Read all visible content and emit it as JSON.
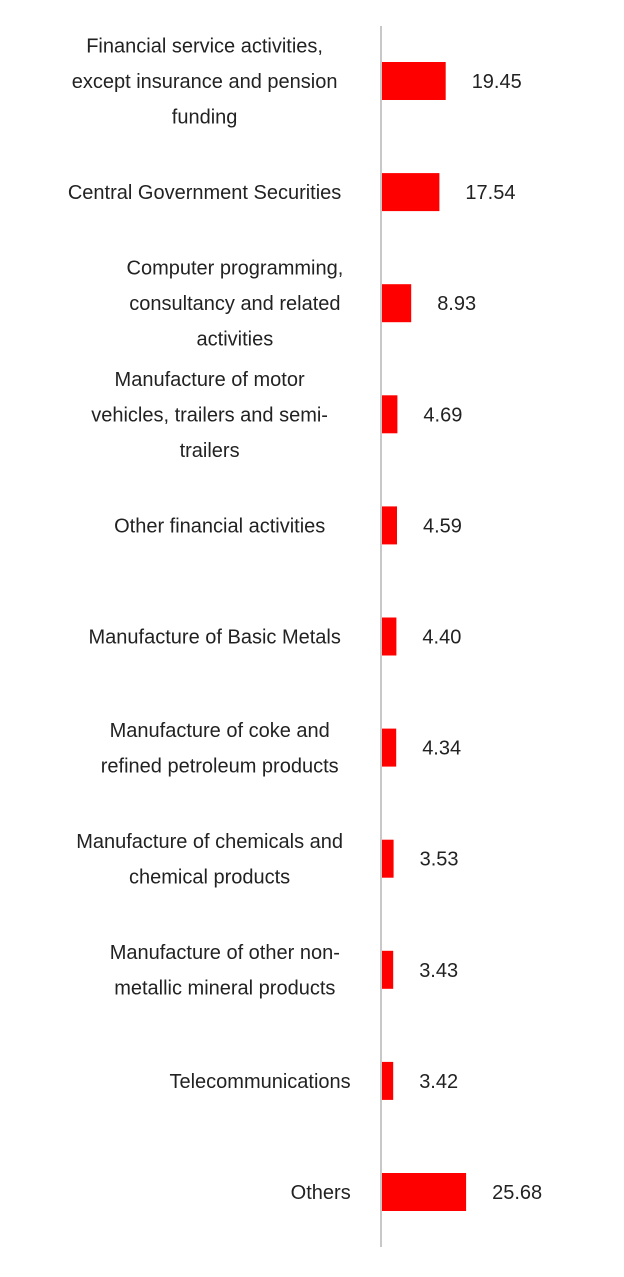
{
  "chart_data": {
    "type": "bar",
    "orientation": "horizontal",
    "categories": [
      "Financial service activities, except insurance and pension funding",
      "Central Government Securities",
      "Computer programming, consultancy and related activities",
      "Manufacture of motor vehicles, trailers and semi-trailers",
      "Other financial activities",
      "Manufacture of Basic Metals",
      "Manufacture of coke and refined petroleum products",
      "Manufacture of chemicals and chemical products",
      "Manufacture of other non-metallic mineral products",
      "Telecommunications",
      "Others"
    ],
    "category_lines": [
      [
        "Financial service activities,",
        "except insurance and pension",
        "funding"
      ],
      [
        "Central Government Securities"
      ],
      [
        "Computer programming,",
        "consultancy and related",
        "activities"
      ],
      [
        "Manufacture of motor",
        "vehicles, trailers and semi-",
        "trailers"
      ],
      [
        "Other financial activities"
      ],
      [
        "Manufacture of Basic Metals"
      ],
      [
        "Manufacture of coke and",
        "refined petroleum products"
      ],
      [
        "Manufacture of chemicals and",
        "chemical products"
      ],
      [
        "Manufacture of other non-",
        "metallic mineral products"
      ],
      [
        "Telecommunications"
      ],
      [
        "Others"
      ]
    ],
    "values": [
      19.45,
      17.54,
      8.93,
      4.69,
      4.59,
      4.4,
      4.34,
      3.53,
      3.43,
      3.42,
      25.68
    ],
    "value_labels": [
      "19.45",
      "17.54",
      "8.93",
      "4.69",
      "4.59",
      "4.40",
      "4.34",
      "3.53",
      "3.43",
      "3.42",
      "25.68"
    ],
    "title": "",
    "xlabel": "",
    "ylabel": "",
    "grid": false,
    "legend": "none",
    "bar_color": "#ff0000",
    "axis_color": "#c8c8c8"
  }
}
